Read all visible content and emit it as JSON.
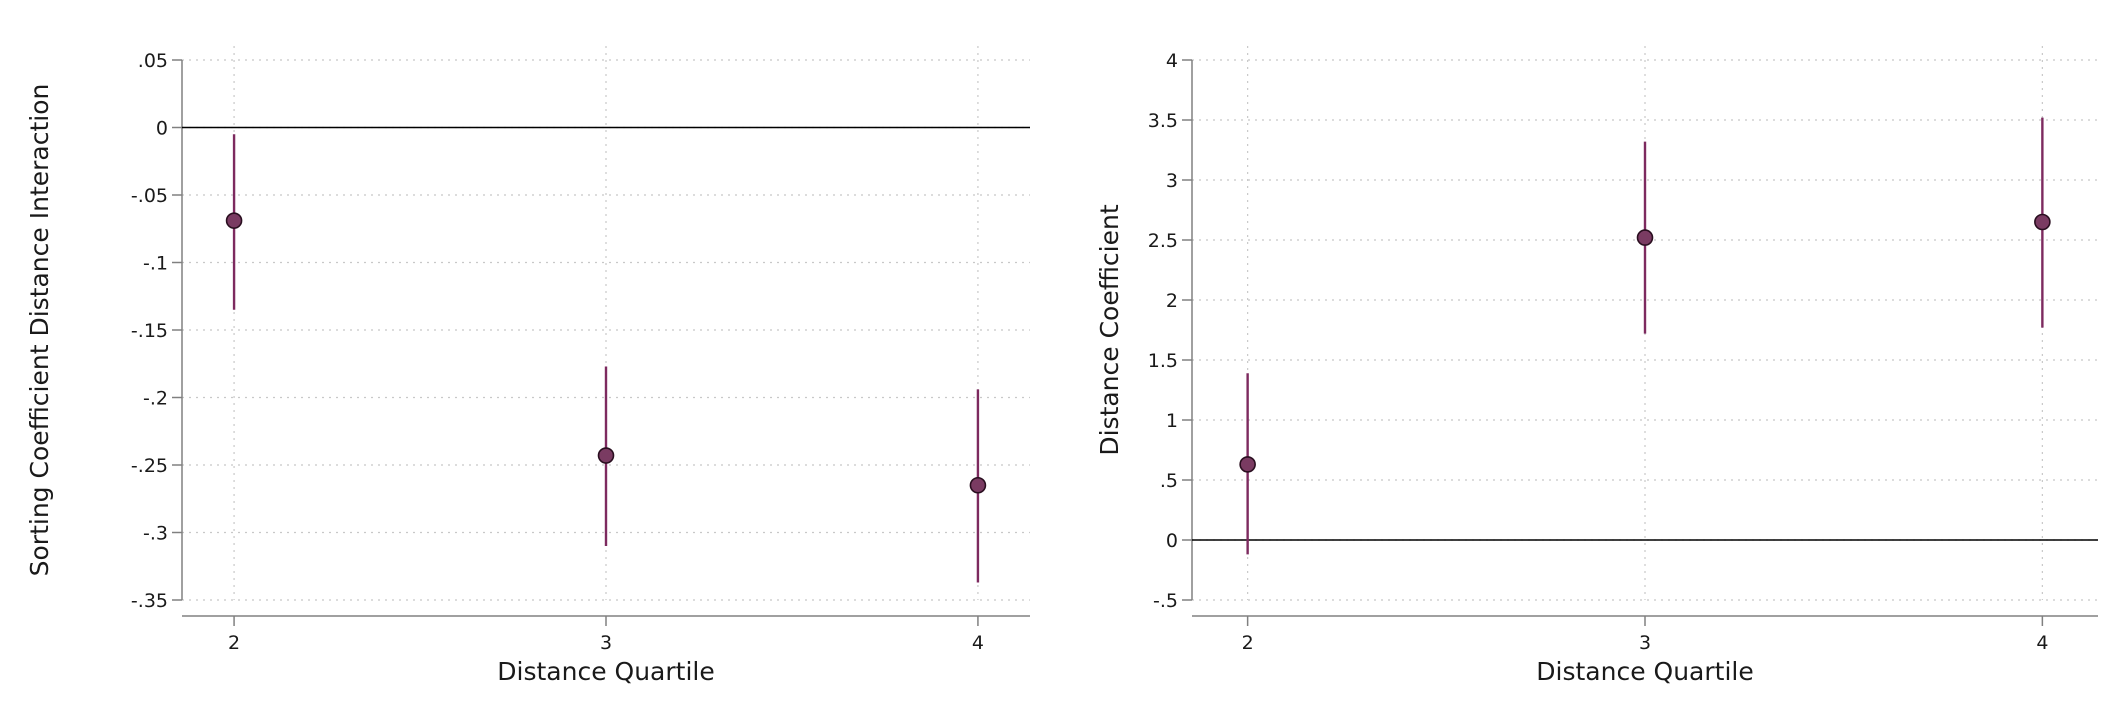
{
  "colors": {
    "marker_fill": "#7a3b62",
    "marker_stroke": "#2a0f20",
    "ci_line": "#7d2a5f",
    "zero_line": "#000000",
    "grid": "#c8c8c8",
    "axis": "#808080"
  },
  "chart_data": [
    {
      "type": "scatter",
      "subtype": "coefficient plot with confidence intervals",
      "xlabel": "Distance Quartile",
      "ylabel": "Sorting Coefficient Distance Interaction",
      "x": [
        2,
        3,
        4
      ],
      "x_ticks": [
        "2",
        "3",
        "4"
      ],
      "xlim": [
        1.86,
        4.14
      ],
      "y_ticks": [
        0.05,
        0,
        -0.05,
        -0.1,
        -0.15,
        -0.2,
        -0.25,
        -0.3,
        -0.35
      ],
      "y_tick_labels": [
        ".05",
        "0",
        "-.05",
        "-.1",
        "-.15",
        "-.2",
        "-.25",
        "-.3",
        "-.35"
      ],
      "ylim": [
        -0.35,
        0.05
      ],
      "reference_line_y": 0,
      "grid": true,
      "series": [
        {
          "estimate": [
            -0.069,
            -0.243,
            -0.265
          ],
          "ci_low": [
            -0.135,
            -0.31,
            -0.337
          ],
          "ci_high": [
            -0.005,
            -0.177,
            -0.194
          ]
        }
      ]
    },
    {
      "type": "scatter",
      "subtype": "coefficient plot with confidence intervals",
      "xlabel": "Distance Quartile",
      "ylabel": "Distance Coefficient",
      "x": [
        2,
        3,
        4
      ],
      "x_ticks": [
        "2",
        "3",
        "4"
      ],
      "xlim": [
        1.86,
        4.14
      ],
      "y_ticks": [
        4,
        3.5,
        3,
        2.5,
        2,
        1.5,
        1,
        0.5,
        0,
        -0.5
      ],
      "y_tick_labels": [
        "4",
        "3.5",
        "3",
        "2.5",
        "2",
        "1.5",
        "1",
        ".5",
        "0",
        "-.5"
      ],
      "ylim": [
        -0.5,
        4
      ],
      "reference_line_y": 0,
      "grid": true,
      "series": [
        {
          "estimate": [
            0.63,
            2.52,
            2.65
          ],
          "ci_low": [
            -0.12,
            1.72,
            1.77
          ],
          "ci_high": [
            1.39,
            3.32,
            3.52
          ]
        }
      ]
    }
  ]
}
